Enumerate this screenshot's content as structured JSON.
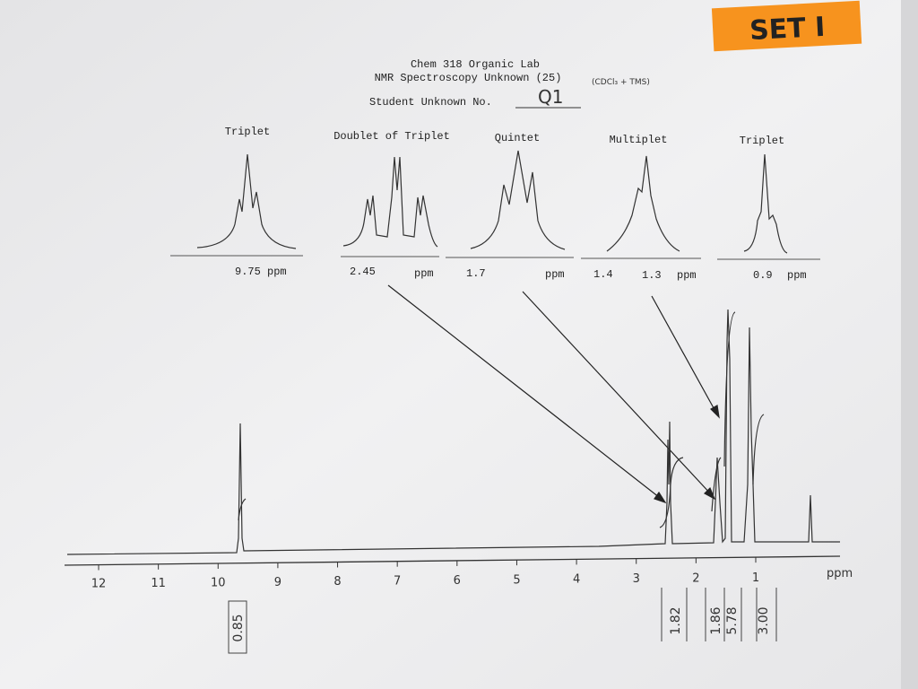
{
  "sticker": "SET I",
  "header": {
    "line1": "Chem 318 Organic Lab",
    "line2": "NMR Spectroscopy Unknown (25)",
    "solvent": "(CDCl₃ + TMS)",
    "student_label": "Student Unknown No.",
    "student_no": "Q1"
  },
  "insets": [
    {
      "title": "Triplet",
      "labels": [
        "9.75 ppm"
      ]
    },
    {
      "title": "Doublet of Triplet",
      "labels": [
        "2.45",
        "ppm"
      ]
    },
    {
      "title": "Quintet",
      "labels": [
        "1.7",
        "ppm"
      ]
    },
    {
      "title": "Multiplet",
      "labels": [
        "1.4",
        "1.3",
        "ppm"
      ]
    },
    {
      "title": "Triplet",
      "labels": [
        "0.9",
        "ppm"
      ]
    }
  ],
  "axis": {
    "ticks": [
      12,
      11,
      10,
      9,
      8,
      7,
      6,
      5,
      4,
      3,
      2,
      1
    ],
    "unit": "ppm"
  },
  "integrations": [
    "0.85",
    "1.82",
    "1.86",
    "5.78",
    "3.00"
  ]
}
